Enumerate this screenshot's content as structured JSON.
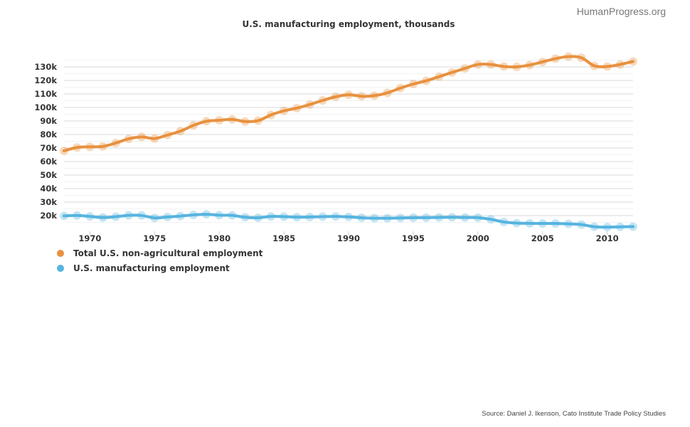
{
  "brand": "HumanProgress.org",
  "source": "Source: Daniel J. Ikenson, Cato Institute Trade Policy Studies",
  "chart_data": {
    "type": "line",
    "title": "U.S. manufacturing employment, thousands",
    "xlabel": "",
    "ylabel": "",
    "xlim": [
      1968,
      2012
    ],
    "ylim": [
      10000,
      140000
    ],
    "grid": true,
    "legend_position": "bottom-left",
    "x_ticks": [
      1970,
      1975,
      1980,
      1985,
      1990,
      1995,
      2000,
      2005,
      2010
    ],
    "x_tick_labels": [
      "1970",
      "1975",
      "1980",
      "1985",
      "1990",
      "1995",
      "2000",
      "2005",
      "2010"
    ],
    "y_ticks": [
      20000,
      30000,
      40000,
      50000,
      60000,
      70000,
      80000,
      90000,
      100000,
      110000,
      120000,
      130000
    ],
    "y_tick_labels": [
      "20k",
      "30k",
      "40k",
      "50k",
      "60k",
      "70k",
      "80k",
      "90k",
      "100k",
      "110k",
      "120k",
      "130k"
    ],
    "x": [
      1968,
      1969,
      1970,
      1971,
      1972,
      1973,
      1974,
      1975,
      1976,
      1977,
      1978,
      1979,
      1980,
      1981,
      1982,
      1983,
      1984,
      1985,
      1986,
      1987,
      1988,
      1989,
      1990,
      1991,
      1992,
      1993,
      1994,
      1995,
      1996,
      1997,
      1998,
      1999,
      2000,
      2001,
      2002,
      2003,
      2004,
      2005,
      2006,
      2007,
      2008,
      2009,
      2010,
      2011,
      2012
    ],
    "series": [
      {
        "name": "Total U.S. non-agricultural employment",
        "color": "#e8913f",
        "values": [
          67900,
          70400,
          70900,
          71200,
          73700,
          76800,
          78200,
          77000,
          79600,
          82500,
          86700,
          89800,
          90500,
          91200,
          89600,
          90200,
          94500,
          97500,
          99500,
          102200,
          105200,
          107900,
          109400,
          108300,
          108700,
          110800,
          114300,
          117300,
          119700,
          122800,
          125900,
          128900,
          131800,
          131800,
          130300,
          130000,
          131400,
          133700,
          136100,
          137600,
          136800,
          130800,
          130300,
          131800,
          134000
        ]
      },
      {
        "name": "U.S. manufacturing employment",
        "color": "#56b4e0",
        "values": [
          19800,
          20100,
          19400,
          18600,
          19200,
          20200,
          20100,
          18300,
          19000,
          19700,
          20500,
          21000,
          20300,
          20200,
          18800,
          18400,
          19400,
          19300,
          18900,
          19000,
          19300,
          19400,
          19100,
          18400,
          18100,
          18100,
          18300,
          18500,
          18500,
          18700,
          18800,
          18600,
          18500,
          17300,
          15300,
          14500,
          14300,
          14200,
          14200,
          13900,
          13400,
          11800,
          11500,
          11700,
          11900
        ]
      }
    ]
  }
}
